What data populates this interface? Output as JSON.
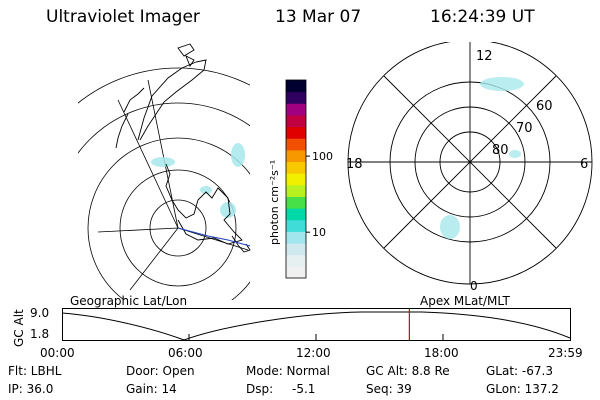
{
  "header": {
    "title": "Ultraviolet Imager",
    "date": "13 Mar 07",
    "time": "16:24:39 UT"
  },
  "colorbar": {
    "unit_label": "photon cm⁻²s⁻¹",
    "ticks": [
      {
        "value": 100,
        "label": "100"
      },
      {
        "value": 10,
        "label": "10"
      }
    ],
    "colors": [
      "#f0f0f0",
      "#e6f0f0",
      "#cfe9ee",
      "#a0e6ec",
      "#40dcd8",
      "#00d8a8",
      "#48e048",
      "#b8f020",
      "#f0f000",
      "#f8c800",
      "#f89800",
      "#f05000",
      "#e00000",
      "#c00040",
      "#a00080",
      "#300060",
      "#000030"
    ]
  },
  "left_map": {
    "label": "Geographic Lat/Lon"
  },
  "right_map": {
    "label": "Apex MLat/MLT",
    "mlt_labels": {
      "top": "12",
      "left": "18",
      "right": "6",
      "bottom": "0"
    },
    "lat_labels": [
      "60",
      "70",
      "80"
    ]
  },
  "altitude_plot": {
    "ylabel": "GC Alt",
    "yticks": [
      "9.0",
      "1.8"
    ],
    "xticks": [
      "00:00",
      "06:00",
      "12:00",
      "18:00",
      "23:59"
    ],
    "marker_time": "16:24"
  },
  "info": {
    "filter": "Flt: LBHL",
    "ip": "IP: 36.0",
    "door": "Door: Open",
    "gain": "Gain: 14",
    "mode": "Mode: Normal",
    "dsp_label": "Dsp:",
    "dsp_value": "-5.1",
    "gc_alt": "GC Alt: 8.8 Re",
    "seq": "Seq: 39",
    "glat": "GLat: -67.3",
    "glon": "GLon: 137.2"
  }
}
